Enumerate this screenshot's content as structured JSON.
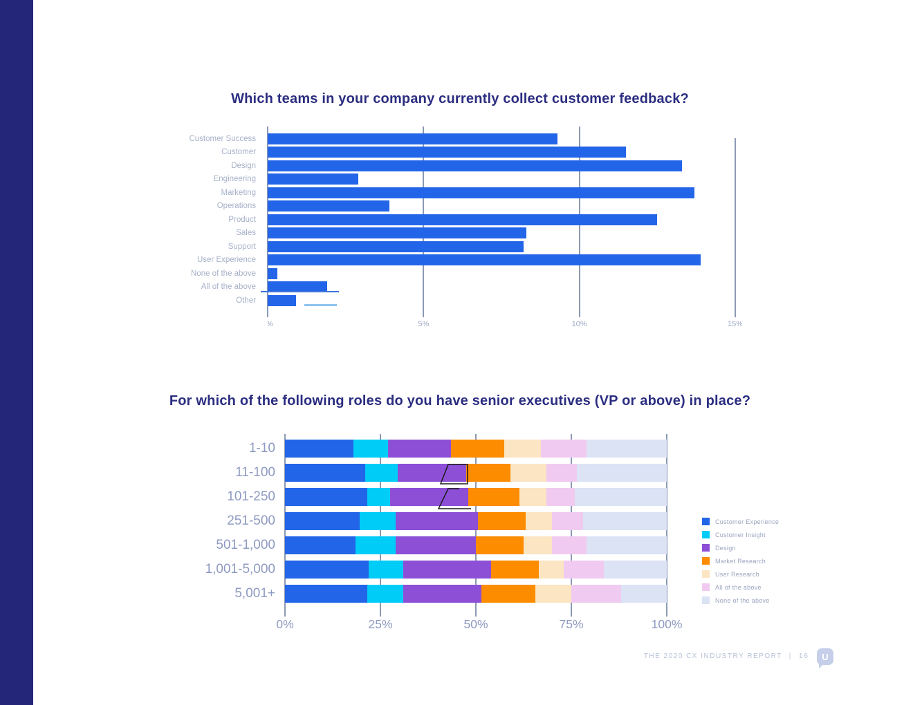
{
  "footer": {
    "report_title": "THE 2020 CX INDUSTRY REPORT",
    "separator": "|",
    "page_number": "16",
    "logo_letter": "U"
  },
  "colors": {
    "sidebar": "#242679",
    "title": "#2b2d80",
    "gridline": "#8b99b3",
    "bar_blue": "#2365e8",
    "logo_bg": "#c5cfe9"
  },
  "chart_data": [
    {
      "type": "bar",
      "orientation": "horizontal",
      "title": "Which teams in your company currently collect customer feedback?",
      "categories": [
        "Customer Success",
        "Customer",
        "Design",
        "Engineering",
        "Marketing",
        "Operations",
        "Product",
        "Sales",
        "Support",
        "User Experience",
        "None of the above",
        "All of the above",
        "Other"
      ],
      "values": [
        9.3,
        11.5,
        13.3,
        2.9,
        13.7,
        3.9,
        12.5,
        8.3,
        8.2,
        13.9,
        0.3,
        1.9,
        0.9
      ],
      "unit": "%",
      "xlim": [
        0,
        15
      ],
      "x_ticks": [
        "0%",
        "5%",
        "10%",
        "15%"
      ],
      "bar_color": "#2365e8",
      "grid": "vertical-only",
      "legend_position": "none"
    },
    {
      "type": "bar",
      "orientation": "horizontal",
      "stacked": true,
      "title": "For which of the following roles do you have senior executives (VP or above) in place?",
      "categories": [
        "1-10",
        "11-100",
        "101-250",
        "251-500",
        "501-1,000",
        "1,001-5,000",
        "5,001+"
      ],
      "unit": "%",
      "xlim": [
        0,
        100
      ],
      "x_ticks": [
        "0%",
        "25%",
        "50%",
        "75%",
        "100%"
      ],
      "grid": "vertical-only",
      "legend_position": "right",
      "series": [
        {
          "name": "Customer Experience",
          "color": "#2365e8",
          "values": [
            18.0,
            21.0,
            21.5,
            19.5,
            18.5,
            22.0,
            21.5
          ]
        },
        {
          "name": "Customer Insight",
          "color": "#00ccf8",
          "values": [
            9.0,
            8.5,
            6.0,
            9.5,
            10.5,
            9.0,
            9.5
          ]
        },
        {
          "name": "Design",
          "color": "#8c4fd5",
          "values": [
            16.5,
            18.0,
            20.5,
            21.5,
            21.0,
            23.0,
            20.5
          ]
        },
        {
          "name": "Market Research",
          "color": "#fd8c00",
          "values": [
            14.0,
            11.5,
            13.5,
            12.5,
            12.5,
            12.5,
            14.0
          ]
        },
        {
          "name": "User Research",
          "color": "#fbe5c2",
          "values": [
            9.5,
            9.5,
            7.0,
            7.0,
            7.5,
            6.5,
            9.5
          ]
        },
        {
          "name": "All of the above",
          "color": "#f0caf0",
          "values": [
            12.0,
            8.0,
            7.5,
            8.0,
            9.0,
            10.5,
            13.0
          ]
        },
        {
          "name": "None of the above",
          "color": "#dbe3f5",
          "values": [
            21.0,
            23.5,
            24.0,
            22.0,
            21.0,
            16.5,
            12.0
          ]
        }
      ]
    }
  ]
}
